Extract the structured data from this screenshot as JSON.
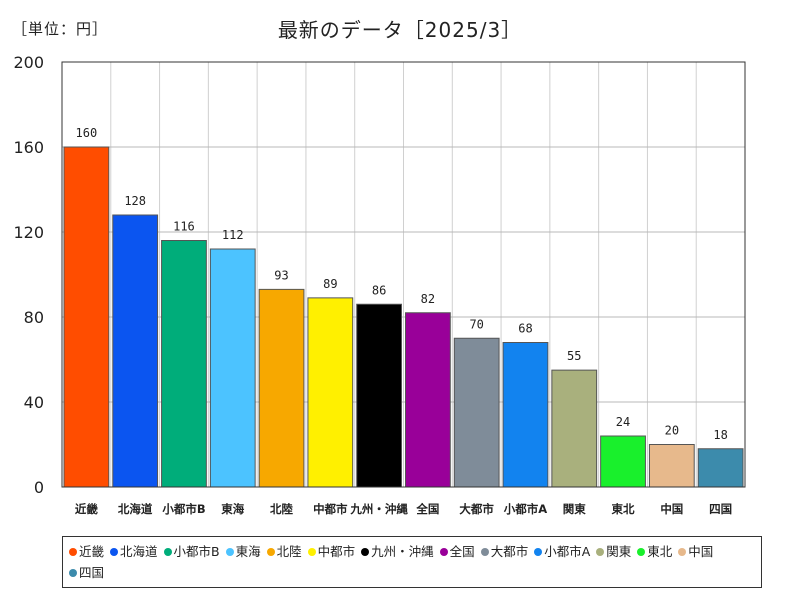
{
  "unit_label": "［単位：円］",
  "chart_data": {
    "type": "bar",
    "title": "最新のデータ［2025/3］",
    "categories": [
      "近畿",
      "北海道",
      "小都市B",
      "東海",
      "北陸",
      "中都市",
      "九州・沖縄",
      "全国",
      "大都市",
      "小都市A",
      "関東",
      "東北",
      "中国",
      "四国"
    ],
    "values": [
      160,
      128,
      116,
      112,
      93,
      89,
      86,
      82,
      70,
      68,
      55,
      24,
      20,
      18
    ],
    "colors": [
      "#ff4d00",
      "#0b55f0",
      "#00ad7a",
      "#4cc3ff",
      "#f7a800",
      "#fff000",
      "#000000",
      "#990099",
      "#7f8c99",
      "#1283ef",
      "#a9b07d",
      "#19f02c",
      "#e7b98c",
      "#3c8bac"
    ],
    "yticks": [
      0,
      40,
      80,
      120,
      160,
      200
    ],
    "ylim": [
      0,
      200
    ],
    "grid": true,
    "legend_position": "bottom"
  }
}
